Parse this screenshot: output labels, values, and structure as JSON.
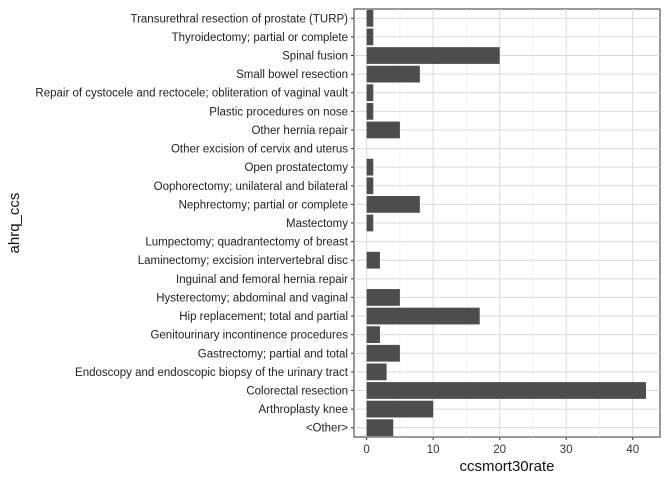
{
  "chart_data": {
    "type": "bar",
    "orientation": "horizontal",
    "xlabel": "ccsmort30rate",
    "ylabel": "ahrq_ccs",
    "xlim": [
      -1.9,
      44.1
    ],
    "xticks": [
      0,
      10,
      20,
      30,
      40
    ],
    "grid": true,
    "bar_color": "#4d4d4d",
    "categories": [
      "Transurethral resection of prostate (TURP)",
      "Thyroidectomy; partial or complete",
      "Spinal fusion",
      "Small bowel resection",
      "Repair of cystocele and rectocele; obliteration of vaginal vault",
      "Plastic procedures on nose",
      "Other hernia repair",
      "Other excision of cervix and uterus",
      "Open prostatectomy",
      "Oophorectomy; unilateral and bilateral",
      "Nephrectomy; partial or complete",
      "Mastectomy",
      "Lumpectomy; quadrantectomy of breast",
      "Laminectomy; excision intervertebral disc",
      "Inguinal and femoral hernia repair",
      "Hysterectomy; abdominal and vaginal",
      "Hip replacement; total and partial",
      "Genitourinary incontinence procedures",
      "Gastrectomy; partial and total",
      "Endoscopy and endoscopic biopsy of the urinary tract",
      "Colorectal resection",
      "Arthroplasty knee",
      "<Other>"
    ],
    "values": [
      1,
      1,
      20,
      8,
      1,
      1,
      5,
      0,
      1,
      1,
      8,
      1,
      0,
      2,
      0,
      5,
      17,
      2,
      5,
      3,
      42,
      10,
      4
    ]
  }
}
